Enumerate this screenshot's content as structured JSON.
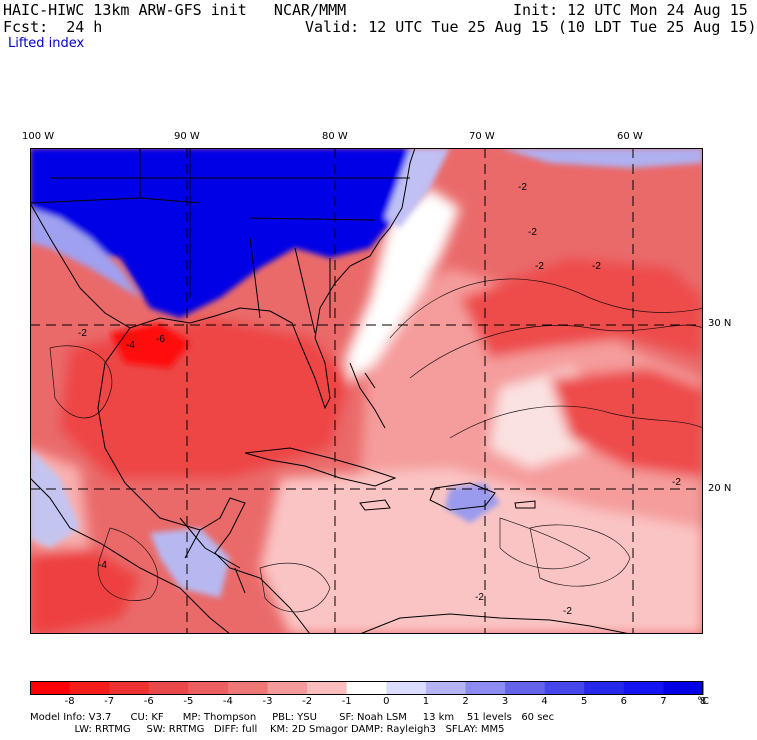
{
  "header": {
    "model_title": "HAIC-HIWC 13km ARW-GFS init   NCAR/MMM",
    "init": "Init: 12 UTC Mon 24 Aug 15",
    "fcst": "Fcst:  24 h",
    "valid": "Valid: 12 UTC Tue 25 Aug 15 (10 LDT Tue 25 Aug 15)",
    "field": "Lifted index"
  },
  "map": {
    "lon_labels": [
      "100 W",
      "90 W",
      "80 W",
      "70 W",
      "60 W"
    ],
    "lat_labels": [
      "30 N",
      "20 N"
    ],
    "contour_labels": [
      "-2",
      "-2",
      "-2",
      "-2",
      "-6",
      "-4",
      "-2",
      "-2",
      "-2",
      "-2",
      "-4"
    ]
  },
  "colorbar": {
    "labels": [
      "-8",
      "-7",
      "-6",
      "-5",
      "-4",
      "-3",
      "-2",
      "-1",
      "0",
      "1",
      "2",
      "3",
      "4",
      "5",
      "6",
      "7",
      "8"
    ],
    "unit": "°C",
    "colors": [
      "#ff0000",
      "#f51c1c",
      "#ee3232",
      "#ea4848",
      "#ea6060",
      "#ee7878",
      "#f39a9a",
      "#fbbebe",
      "#ffffff",
      "#dcdcff",
      "#b4b4f5",
      "#8c8cf0",
      "#6464eb",
      "#4646eb",
      "#2828eb",
      "#1414f0",
      "#0000e6"
    ]
  },
  "footer": {
    "line1": "Model Info: V3.7      CU: KF      MP: Thompson     PBL: YSU       SF: Noah LSM     13 km    51 levels   60 sec",
    "line2": "              LW: RRTMG     SW: RRTMG   DIFF: full    KM: 2D Smagor DAMP: Rayleigh3   SFLAY: MM5"
  }
}
